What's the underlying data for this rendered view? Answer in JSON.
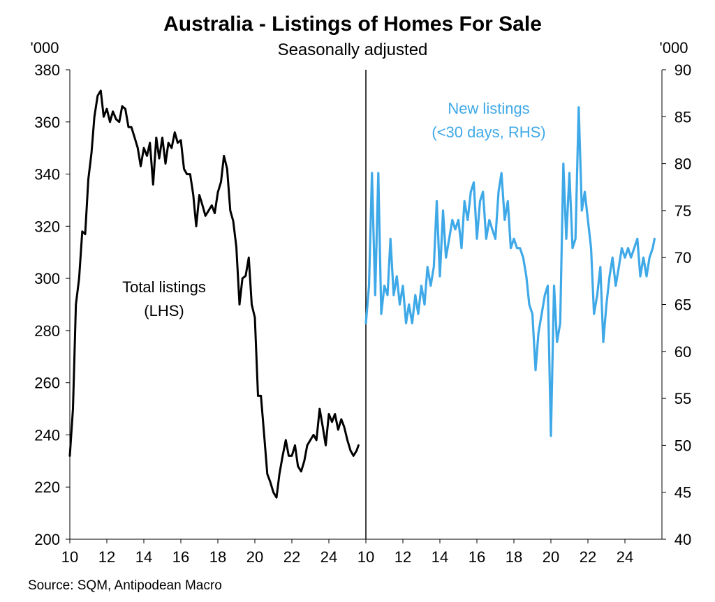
{
  "chart_data": {
    "type": "line",
    "title": "Australia - Listings of Homes For Sale",
    "subtitle": "Seasonally adjusted",
    "source": "Source: SQM, Antipodean Macro",
    "left_unit": "'000",
    "right_unit": "'000",
    "left_axis": {
      "ylim": [
        200,
        380
      ],
      "ticks": [
        "200",
        "220",
        "240",
        "260",
        "280",
        "300",
        "320",
        "340",
        "360",
        "380"
      ]
    },
    "right_axis": {
      "ylim": [
        40,
        90
      ],
      "ticks": [
        "40",
        "45",
        "50",
        "55",
        "60",
        "65",
        "70",
        "75",
        "80",
        "85",
        "90"
      ]
    },
    "x_ticks_left": [
      "10",
      "12",
      "14",
      "16",
      "18",
      "20",
      "22",
      "24"
    ],
    "x_ticks_right": [
      "10",
      "12",
      "14",
      "16",
      "18",
      "20",
      "22",
      "24"
    ],
    "annotations": {
      "left": [
        "Total listings",
        "(LHS)"
      ],
      "right": [
        "New listings",
        "(<30 days, RHS)"
      ]
    },
    "colors": {
      "total": "#000000",
      "new": "#3fa9e8"
    },
    "series": [
      {
        "name": "Total listings (LHS)",
        "axis": "left",
        "x": [
          10.0,
          10.17,
          10.33,
          10.5,
          10.67,
          10.83,
          11.0,
          11.17,
          11.33,
          11.5,
          11.67,
          11.83,
          12.0,
          12.17,
          12.33,
          12.5,
          12.67,
          12.83,
          13.0,
          13.17,
          13.33,
          13.5,
          13.67,
          13.83,
          14.0,
          14.17,
          14.33,
          14.5,
          14.67,
          14.83,
          15.0,
          15.17,
          15.33,
          15.5,
          15.67,
          15.83,
          16.0,
          16.17,
          16.33,
          16.5,
          16.67,
          16.83,
          17.0,
          17.17,
          17.33,
          17.5,
          17.67,
          17.83,
          18.0,
          18.17,
          18.33,
          18.5,
          18.67,
          18.83,
          19.0,
          19.17,
          19.33,
          19.5,
          19.67,
          19.83,
          20.0,
          20.17,
          20.33,
          20.5,
          20.67,
          20.83,
          21.0,
          21.17,
          21.33,
          21.5,
          21.67,
          21.83,
          22.0,
          22.17,
          22.33,
          22.5,
          22.67,
          22.83,
          23.0,
          23.17,
          23.33,
          23.5,
          23.67,
          23.83,
          24.0,
          24.17,
          24.33,
          24.5,
          24.67,
          24.83,
          25.0,
          25.17,
          25.33,
          25.5,
          25.6
        ],
        "values": [
          232,
          250,
          290,
          300,
          318,
          317,
          338,
          348,
          362,
          370,
          372,
          362,
          365,
          360,
          364,
          361,
          360,
          366,
          365,
          358,
          358,
          354,
          350,
          343,
          350,
          347,
          352,
          336,
          354,
          346,
          354,
          344,
          352,
          350,
          356,
          352,
          353,
          342,
          340,
          340,
          332,
          320,
          332,
          328,
          324,
          326,
          328,
          325,
          333,
          337,
          347,
          342,
          326,
          322,
          312,
          290,
          300,
          301,
          308,
          290,
          285,
          255,
          255,
          240,
          225,
          222,
          218,
          216,
          225,
          232,
          238,
          232,
          232,
          236,
          228,
          226,
          230,
          236,
          238,
          240,
          238,
          250,
          243,
          236,
          248,
          245,
          248,
          242,
          246,
          243,
          238,
          234,
          232,
          234,
          236
        ],
        "y": [
          232,
          250,
          290,
          300,
          318,
          317,
          338,
          348,
          362,
          370,
          372,
          362,
          365,
          360,
          364,
          361,
          360,
          366,
          365,
          358,
          358,
          354,
          350,
          343,
          350,
          347,
          352,
          336,
          354,
          346,
          354,
          344,
          352,
          350,
          356,
          352,
          353,
          342,
          340,
          340,
          332,
          320,
          332,
          328,
          324,
          326,
          328,
          325,
          333,
          337,
          347,
          342,
          326,
          322,
          312,
          290,
          300,
          301,
          308,
          290,
          285,
          255,
          255,
          240,
          225,
          222,
          218,
          216,
          225,
          232,
          238,
          232,
          232,
          236,
          228,
          226,
          230,
          236,
          238,
          240,
          238,
          250,
          243,
          236,
          248,
          245,
          248,
          242,
          246,
          243,
          238,
          234,
          232,
          234,
          236
        ]
      },
      {
        "name": "New listings (<30 days, RHS)",
        "axis": "right",
        "x": [
          10.0,
          10.17,
          10.33,
          10.5,
          10.67,
          10.83,
          11.0,
          11.17,
          11.33,
          11.5,
          11.67,
          11.83,
          12.0,
          12.17,
          12.33,
          12.5,
          12.67,
          12.83,
          13.0,
          13.17,
          13.33,
          13.5,
          13.67,
          13.83,
          14.0,
          14.17,
          14.33,
          14.5,
          14.67,
          14.83,
          15.0,
          15.17,
          15.33,
          15.5,
          15.67,
          15.83,
          16.0,
          16.17,
          16.33,
          16.5,
          16.67,
          16.83,
          17.0,
          17.17,
          17.33,
          17.5,
          17.67,
          17.83,
          18.0,
          18.17,
          18.33,
          18.5,
          18.67,
          18.83,
          19.0,
          19.17,
          19.33,
          19.5,
          19.67,
          19.83,
          20.0,
          20.17,
          20.33,
          20.5,
          20.67,
          20.83,
          21.0,
          21.17,
          21.33,
          21.5,
          21.67,
          21.83,
          22.0,
          22.17,
          22.33,
          22.5,
          22.67,
          22.83,
          23.0,
          23.17,
          23.33,
          23.5,
          23.67,
          23.83,
          24.0,
          24.17,
          24.33,
          24.5,
          24.67,
          24.83,
          25.0,
          25.17,
          25.33,
          25.5,
          25.6
        ],
        "values": [
          63,
          67,
          79,
          66,
          79,
          64,
          67,
          66,
          72,
          66,
          68,
          65,
          67,
          63,
          65,
          63,
          66,
          64,
          67,
          65,
          69,
          67,
          69,
          76,
          68,
          75,
          70,
          72,
          74,
          73,
          74,
          71,
          76,
          74,
          77,
          78,
          72,
          76,
          77,
          72,
          74,
          73,
          72,
          77,
          79,
          74,
          76,
          71,
          72,
          71,
          71,
          70,
          68,
          65,
          64,
          58,
          62,
          64,
          66,
          67,
          51,
          67,
          61,
          63,
          80,
          72,
          79,
          71,
          72,
          86,
          75,
          77,
          74,
          71,
          64,
          66,
          69,
          61,
          65,
          68,
          70,
          67,
          69,
          71,
          70,
          71,
          70,
          71,
          72,
          68,
          70,
          68,
          70,
          71,
          72
        ],
        "y": [
          63,
          67,
          79,
          66,
          79,
          64,
          67,
          66,
          72,
          66,
          68,
          65,
          67,
          63,
          65,
          63,
          66,
          64,
          67,
          65,
          69,
          67,
          69,
          76,
          68,
          75,
          70,
          72,
          74,
          73,
          74,
          71,
          76,
          74,
          77,
          78,
          72,
          76,
          77,
          72,
          74,
          73,
          72,
          77,
          79,
          74,
          76,
          71,
          72,
          71,
          71,
          70,
          68,
          65,
          64,
          58,
          62,
          64,
          66,
          67,
          51,
          67,
          61,
          63,
          80,
          72,
          79,
          71,
          72,
          86,
          75,
          77,
          74,
          71,
          64,
          66,
          69,
          61,
          65,
          68,
          70,
          67,
          69,
          71,
          70,
          71,
          70,
          71,
          72,
          68,
          70,
          68,
          70,
          71,
          72
        ]
      }
    ]
  }
}
